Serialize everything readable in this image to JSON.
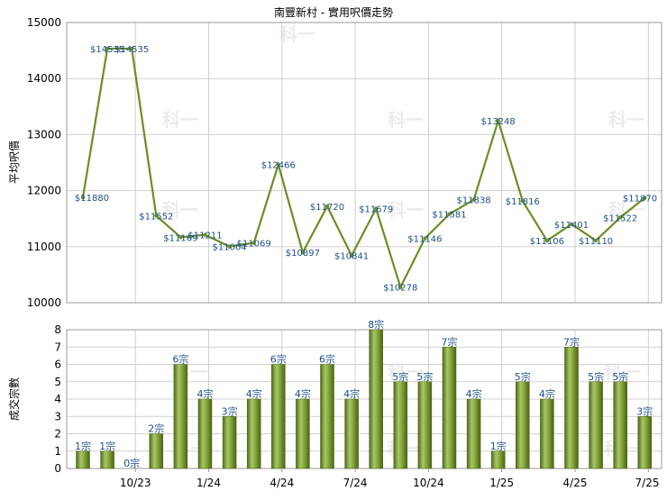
{
  "chart_data": [
    {
      "type": "line",
      "title": "南豐新村 - 實用呎價走勢",
      "ylabel": "平均呎價",
      "ylim": [
        10000,
        15000
      ],
      "yticks": [
        10000,
        11000,
        12000,
        13000,
        14000,
        15000
      ],
      "grid": true,
      "color": "#6b8e23",
      "value_prefix": "$",
      "values": [
        11880,
        14535,
        14535,
        11552,
        11169,
        11211,
        11004,
        11069,
        12466,
        10897,
        11720,
        10841,
        11679,
        10278,
        11146,
        11581,
        11838,
        13248,
        11816,
        11106,
        11401,
        11110,
        11522,
        11870
      ]
    },
    {
      "type": "bar",
      "ylabel": "成交宗數",
      "ylim": [
        0,
        8
      ],
      "yticks": [
        0,
        1,
        2,
        3,
        4,
        5,
        6,
        7,
        8
      ],
      "grid": true,
      "color": "#6b8e23",
      "value_suffix": "宗",
      "values": [
        1,
        1,
        0,
        2,
        6,
        4,
        3,
        4,
        6,
        4,
        6,
        4,
        8,
        5,
        5,
        7,
        4,
        1,
        5,
        4,
        7,
        5,
        5,
        3
      ],
      "xtick_labels": [
        "10/23",
        "1/24",
        "4/24",
        "7/24",
        "10/24",
        "1/25",
        "4/25",
        "7/25"
      ]
    }
  ],
  "watermark": "科一"
}
